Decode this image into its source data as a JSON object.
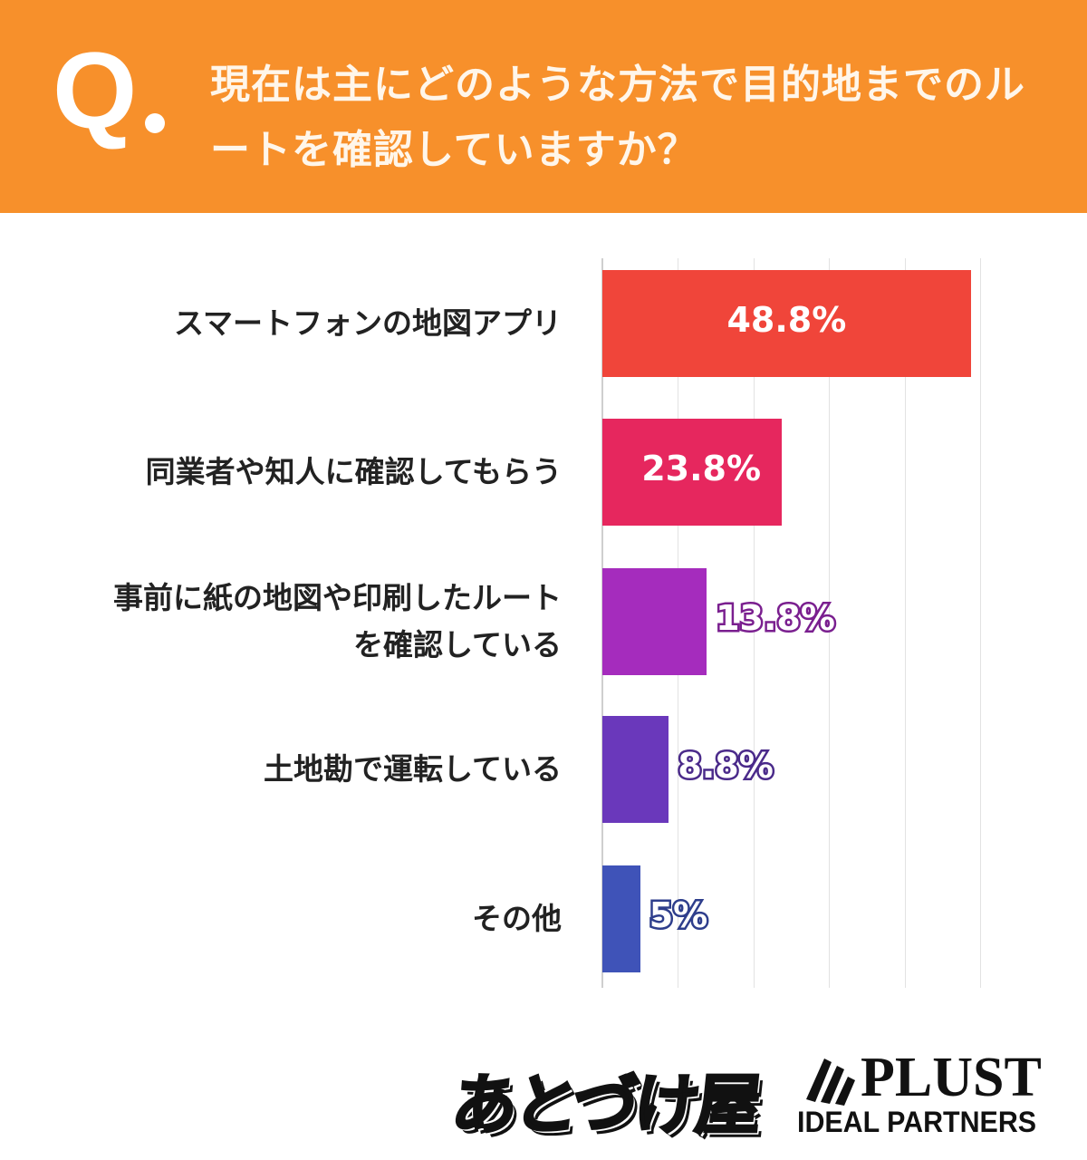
{
  "header": {
    "q_mark": "Q",
    "title": "現在は主にどのような方法で目的地までのルートを確認していますか？"
  },
  "chart_data": {
    "type": "bar",
    "orientation": "horizontal",
    "title": "現在は主にどのような方法で目的地までのルートを確認していますか？",
    "categories": [
      "スマートフォンの地図アプリ",
      "同業者や知人に確認してもらう",
      "事前に紙の地図や印刷したルートを確認している",
      "土地勘で運転している",
      "その他"
    ],
    "category_lines": [
      [
        "スマートフォンの地図アプリ"
      ],
      [
        "同業者や知人に確認してもらう"
      ],
      [
        "事前に紙の地図や印刷したルート",
        "を確認している"
      ],
      [
        "土地勘で運転している"
      ],
      [
        "その他"
      ]
    ],
    "values": [
      48.8,
      23.8,
      13.8,
      8.8,
      5
    ],
    "value_labels": [
      "48.8%",
      "23.8%",
      "13.8%",
      "8.8%",
      "5%"
    ],
    "colors": [
      "#f0453a",
      "#e6275e",
      "#a52cbd",
      "#6a38bb",
      "#3f53b8"
    ],
    "outline_colors": [
      "#f0453a",
      "#e6275e",
      "#7a1f8f",
      "#4a2a8a",
      "#2e3e8c"
    ],
    "xlim": [
      0,
      50
    ],
    "grid": true,
    "grid_step": 10,
    "xlabel": "",
    "ylabel": ""
  },
  "logos": {
    "left": "あとづけ屋",
    "right_main": "PLUST",
    "right_sub": "IDEAL PARTNERS"
  }
}
